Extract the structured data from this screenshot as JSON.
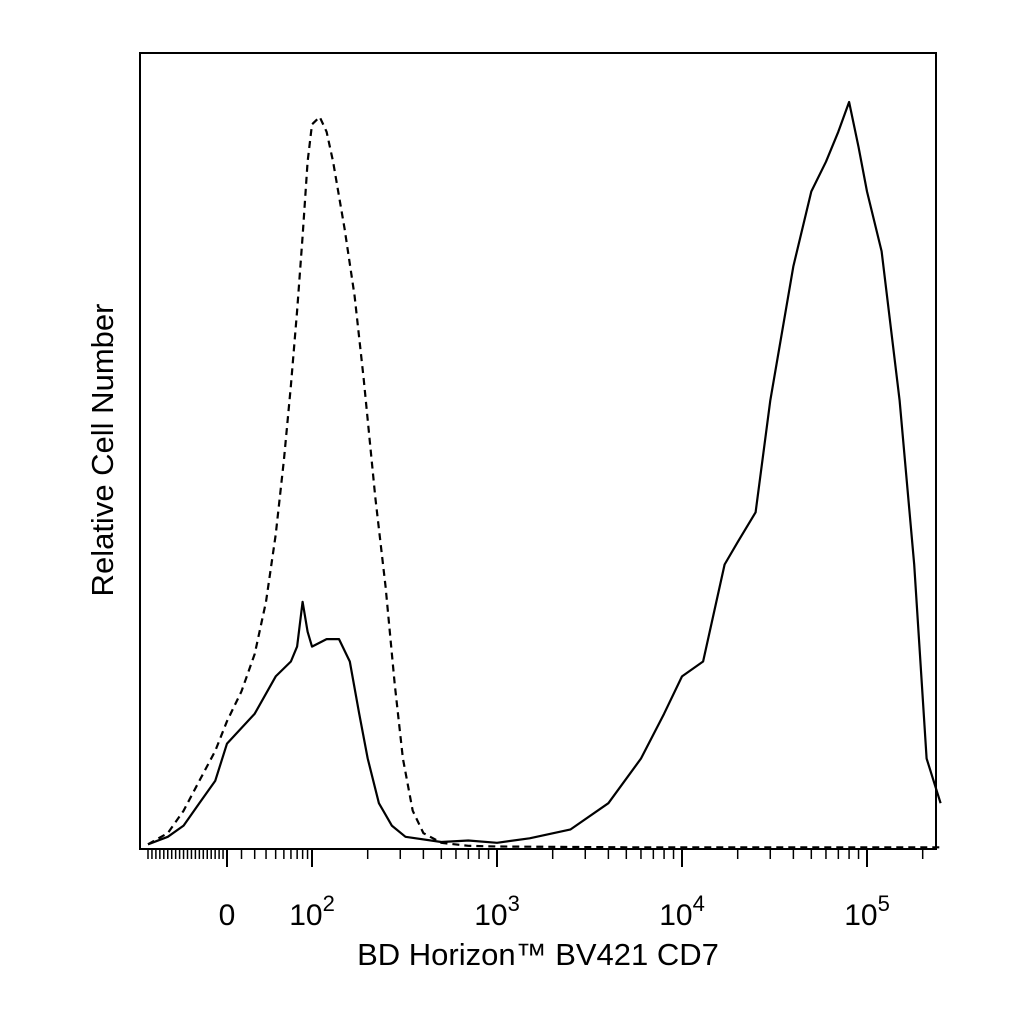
{
  "chart_data": {
    "type": "line",
    "title": "",
    "xlabel": "BD Horizon™ BV421 CD7",
    "ylabel": "Relative Cell Number",
    "x_scale": "logicle",
    "xlim": [
      -200,
      250000
    ],
    "ylim": [
      0,
      100
    ],
    "grid": false,
    "legend": "none",
    "x_ticks": [
      {
        "value": 0,
        "base": "0",
        "exp": ""
      },
      {
        "value": 100,
        "base": "10",
        "exp": "2"
      },
      {
        "value": 1000,
        "base": "10",
        "exp": "3"
      },
      {
        "value": 10000,
        "base": "10",
        "exp": "4"
      },
      {
        "value": 100000,
        "base": "10",
        "exp": "5"
      }
    ],
    "series": [
      {
        "style": "dashed",
        "color": "#000000",
        "points": [
          [
            -200,
            0.5
          ],
          [
            -150,
            2
          ],
          [
            -110,
            5
          ],
          [
            -70,
            9
          ],
          [
            -30,
            13
          ],
          [
            0,
            17
          ],
          [
            10,
            21
          ],
          [
            20,
            26
          ],
          [
            30,
            33
          ],
          [
            40,
            42
          ],
          [
            50,
            52
          ],
          [
            60,
            62
          ],
          [
            70,
            72
          ],
          [
            80,
            82
          ],
          [
            90,
            92
          ],
          [
            100,
            97
          ],
          [
            110,
            98
          ],
          [
            120,
            96
          ],
          [
            130,
            92
          ],
          [
            150,
            83
          ],
          [
            170,
            74
          ],
          [
            190,
            63
          ],
          [
            220,
            47
          ],
          [
            250,
            35
          ],
          [
            280,
            22
          ],
          [
            310,
            12
          ],
          [
            350,
            5
          ],
          [
            400,
            2
          ],
          [
            500,
            0.7
          ],
          [
            700,
            0.3
          ],
          [
            1000,
            0.2
          ],
          [
            5000,
            0.1
          ],
          [
            250000,
            0.1
          ]
        ]
      },
      {
        "style": "solid",
        "color": "#000000",
        "points": [
          [
            -200,
            0.5
          ],
          [
            -150,
            1.5
          ],
          [
            -110,
            3
          ],
          [
            -70,
            6
          ],
          [
            -30,
            9
          ],
          [
            0,
            14
          ],
          [
            20,
            18
          ],
          [
            40,
            23
          ],
          [
            60,
            25
          ],
          [
            70,
            27
          ],
          [
            80,
            33
          ],
          [
            90,
            29
          ],
          [
            100,
            27
          ],
          [
            120,
            28
          ],
          [
            140,
            28
          ],
          [
            160,
            25
          ],
          [
            180,
            18
          ],
          [
            200,
            12
          ],
          [
            230,
            6
          ],
          [
            270,
            3
          ],
          [
            320,
            1.5
          ],
          [
            500,
            0.8
          ],
          [
            700,
            1
          ],
          [
            1000,
            0.7
          ],
          [
            1500,
            1.3
          ],
          [
            2500,
            2.5
          ],
          [
            4000,
            6
          ],
          [
            6000,
            12
          ],
          [
            8000,
            18
          ],
          [
            10000,
            23
          ],
          [
            13000,
            25
          ],
          [
            17000,
            38
          ],
          [
            20000,
            41
          ],
          [
            25000,
            45
          ],
          [
            30000,
            60
          ],
          [
            40000,
            78
          ],
          [
            50000,
            88
          ],
          [
            60000,
            92
          ],
          [
            70000,
            96
          ],
          [
            80000,
            100
          ],
          [
            90000,
            94
          ],
          [
            100000,
            88
          ],
          [
            120000,
            80
          ],
          [
            150000,
            60
          ],
          [
            180000,
            38
          ],
          [
            210000,
            12
          ],
          [
            250000,
            6
          ]
        ]
      }
    ]
  }
}
